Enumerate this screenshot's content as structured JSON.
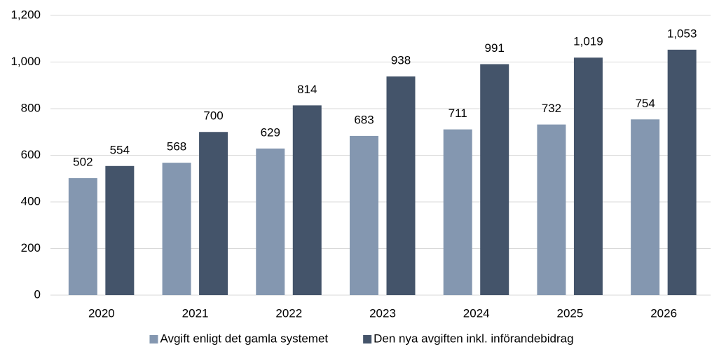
{
  "chart_data": {
    "type": "bar",
    "categories": [
      "2020",
      "2021",
      "2022",
      "2023",
      "2024",
      "2025",
      "2026"
    ],
    "series": [
      {
        "name": "Avgift enligt det gamla systemet",
        "color": "#8497b0",
        "values": [
          502,
          568,
          629,
          683,
          711,
          732,
          754
        ],
        "value_labels": [
          "502",
          "568",
          "629",
          "683",
          "711",
          "732",
          "754"
        ]
      },
      {
        "name": "Den nya avgiften inkl. införandebidrag",
        "color": "#44546a",
        "values": [
          554,
          700,
          814,
          938,
          991,
          1019,
          1053
        ],
        "value_labels": [
          "554",
          "700",
          "814",
          "938",
          "991",
          "1,019",
          "1,053"
        ]
      }
    ],
    "ylim": [
      0,
      1200
    ],
    "yticks": [
      0,
      200,
      400,
      600,
      800,
      {
        "value": 1000,
        "label": "1,000"
      },
      {
        "value": 1200,
        "label": "1,200"
      }
    ],
    "grid": true,
    "legend": "bottom"
  }
}
